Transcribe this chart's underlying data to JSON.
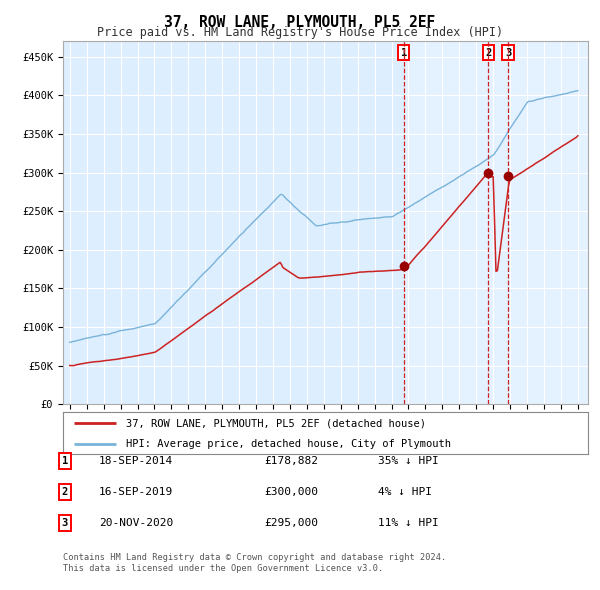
{
  "title": "37, ROW LANE, PLYMOUTH, PL5 2EF",
  "subtitle": "Price paid vs. HM Land Registry's House Price Index (HPI)",
  "background_color": "#ffffff",
  "chart_bg_color": "#ddeeff",
  "grid_color": "#ffffff",
  "hpi_line_color": "#7ab3d9",
  "property_line_color": "#cc2222",
  "marker_color": "#990000",
  "vline_color": "#cc2222",
  "transactions": [
    {
      "num": 1,
      "date": "18-SEP-2014",
      "price": 178882,
      "price_str": "£178,882",
      "pct": "35%",
      "year": 2014.72
    },
    {
      "num": 2,
      "date": "16-SEP-2019",
      "price": 300000,
      "price_str": "£300,000",
      "pct": "4%",
      "year": 2019.72
    },
    {
      "num": 3,
      "date": "20-NOV-2020",
      "price": 295000,
      "price_str": "£295,000",
      "pct": "11%",
      "year": 2020.88
    }
  ],
  "ylim": [
    0,
    470000
  ],
  "yticks": [
    0,
    50000,
    100000,
    150000,
    200000,
    250000,
    300000,
    350000,
    400000,
    450000
  ],
  "ytick_labels": [
    "£0",
    "£50K",
    "£100K",
    "£150K",
    "£200K",
    "£250K",
    "£300K",
    "£350K",
    "£400K",
    "£450K"
  ],
  "start_year": 1995,
  "end_year": 2025,
  "legend_property": "37, ROW LANE, PLYMOUTH, PL5 2EF (detached house)",
  "legend_hpi": "HPI: Average price, detached house, City of Plymouth",
  "footnote1": "Contains HM Land Registry data © Crown copyright and database right 2024.",
  "footnote2": "This data is licensed under the Open Government Licence v3.0."
}
